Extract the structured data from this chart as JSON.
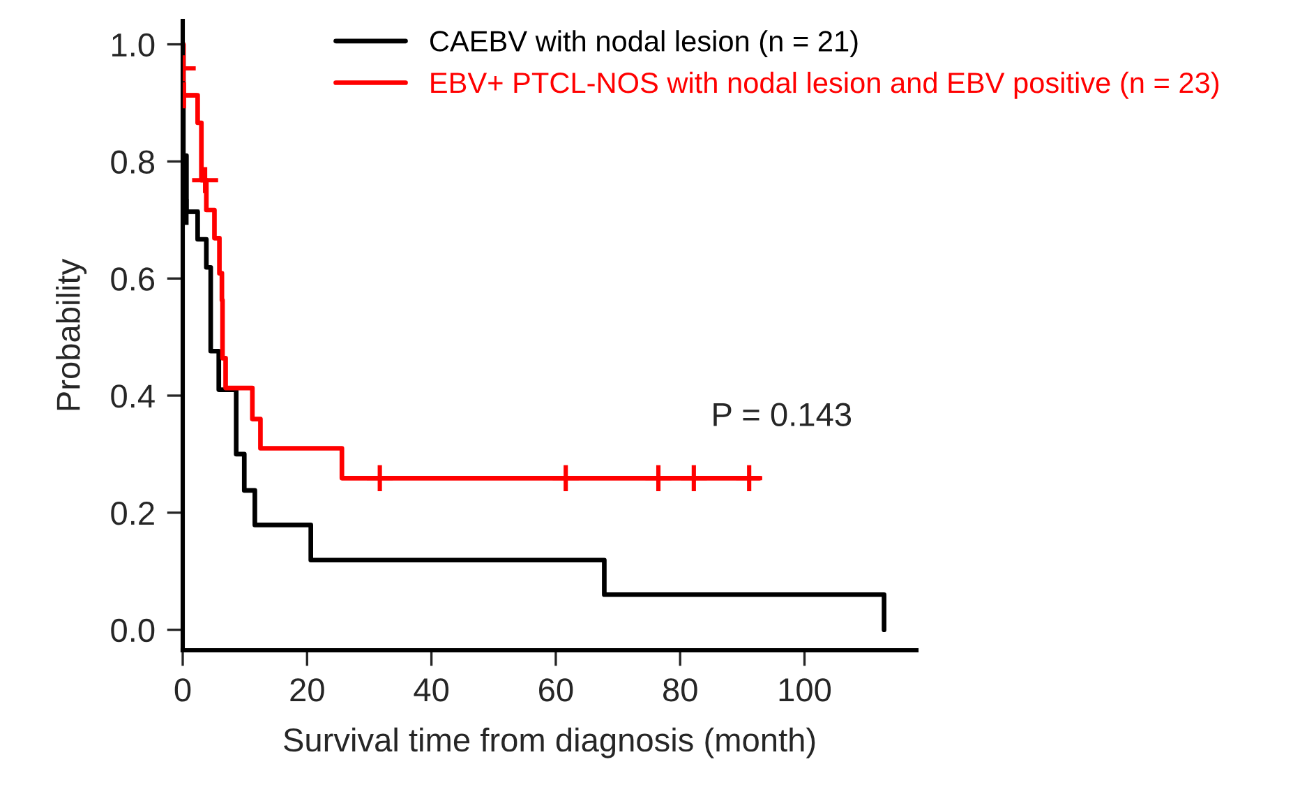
{
  "chart_data": {
    "type": "step",
    "xlabel": "Survival time from diagnosis (month)",
    "ylabel": "Probability",
    "xlim": [
      0,
      118
    ],
    "ylim": [
      -0.035,
      1.04
    ],
    "xticks": [
      0,
      20,
      40,
      60,
      80,
      100
    ],
    "yticks": [
      {
        "value": 0,
        "label": "0.0"
      },
      {
        "value": 0.2,
        "label": "0.2"
      },
      {
        "value": 0.4,
        "label": "0.4"
      },
      {
        "value": 0.6,
        "label": "0.6"
      },
      {
        "value": 0.8,
        "label": "0.8"
      },
      {
        "value": 1,
        "label": "1.0"
      }
    ],
    "grid": false,
    "legend": "top right",
    "line_style": "solid",
    "annotations": [
      "P = 0.143"
    ],
    "series": [
      {
        "name": "CAEBV with nodal lesion (n = 21)",
        "color": "#000000",
        "x": [
          0,
          0.1,
          0.6,
          2.4,
          3.8,
          4.5,
          5.8,
          8.6,
          9.9,
          11.6,
          20.6,
          67.8,
          112.8
        ],
        "values": [
          1.0,
          0.81,
          0.714,
          0.667,
          0.619,
          0.476,
          0.41,
          0.3,
          0.238,
          0.179,
          0.119,
          0.06,
          0.0
        ]
      },
      {
        "name": "EBV+ PTCL-NOS with nodal lesion and EBV positive (n = 23)",
        "color": "#ff0000",
        "x": [
          0,
          0.1,
          2.4,
          3.0,
          3.8,
          5.1,
          5.9,
          6.3,
          6.4,
          6.9,
          11.2,
          12.5,
          25.6,
          92.8
        ],
        "values": [
          1.0,
          0.913,
          0.866,
          0.768,
          0.717,
          0.669,
          0.609,
          0.563,
          0.464,
          0.413,
          0.36,
          0.31,
          0.259,
          0.259
        ]
      },
      {
        "type": "scatter",
        "marker": "cross",
        "color": "#000000",
        "x": [
          0.6
        ],
        "values": [
          0.714
        ]
      },
      {
        "type": "scatter",
        "marker": "cross",
        "color": "#ff0000",
        "x": [
          0,
          0.2,
          3.6,
          31.7,
          61.6,
          76.5,
          82.2,
          91.1
        ],
        "values": [
          0.959,
          0.913,
          0.768,
          0.259,
          0.259,
          0.259,
          0.259,
          0.259
        ]
      }
    ]
  }
}
